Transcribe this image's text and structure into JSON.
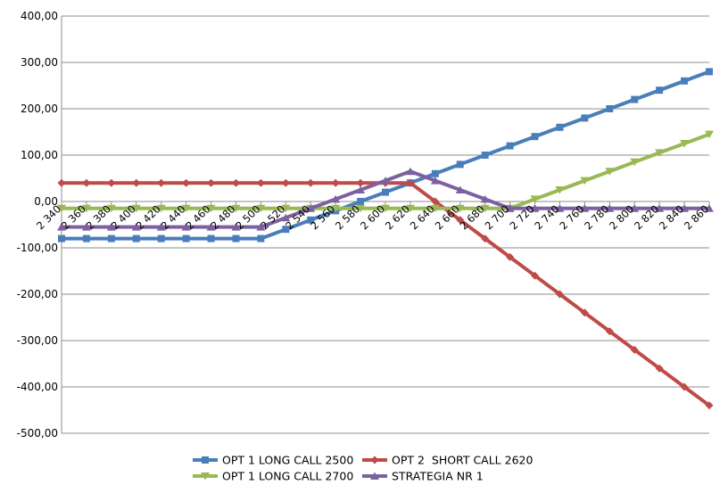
{
  "chart_data": {
    "type": "line",
    "title": "",
    "xlabel": "",
    "ylabel": "",
    "ylim": [
      -500,
      400
    ],
    "y_ticks": [
      "400,00",
      "300,00",
      "200,00",
      "100,00",
      "0,00",
      "-100,00",
      "-200,00",
      "-300,00",
      "-400,00",
      "-500,00"
    ],
    "y_tick_values": [
      400,
      300,
      200,
      100,
      0,
      -100,
      -200,
      -300,
      -400,
      -500
    ],
    "grid": "horizontal",
    "legend_position": "bottom",
    "categories": [
      "2 340",
      "2 360",
      "2 380",
      "2 400",
      "2 420",
      "2 440",
      "2 460",
      "2 480",
      "2 500",
      "2 520",
      "2 540",
      "2 560",
      "2 580",
      "2 600",
      "2 620",
      "2 640",
      "2 660",
      "2 680",
      "2 700",
      "2 720",
      "2 740",
      "2 760",
      "2 780",
      "2 800",
      "2 820",
      "2 840",
      "2 860"
    ],
    "series": [
      {
        "name": "OPT 1 LONG CALL 2500",
        "color": "#4a7ebb",
        "marker": "square",
        "values": [
          -80,
          -80,
          -80,
          -80,
          -80,
          -80,
          -80,
          -80,
          -80,
          -60,
          -40,
          -20,
          0,
          20,
          40,
          60,
          80,
          100,
          120,
          140,
          160,
          180,
          200,
          220,
          240,
          260,
          280
        ]
      },
      {
        "name": "OPT 2  SHORT CALL 2620",
        "color": "#be4b48",
        "marker": "diamond",
        "values": [
          40,
          40,
          40,
          40,
          40,
          40,
          40,
          40,
          40,
          40,
          40,
          40,
          40,
          40,
          40,
          0,
          -40,
          -80,
          -120,
          -160,
          -200,
          -240,
          -280,
          -320,
          -360,
          -400,
          -440
        ]
      },
      {
        "name": "OPT 1 LONG CALL 2700",
        "color": "#98b954",
        "marker": "triangle-down",
        "values": [
          -15,
          -15,
          -15,
          -15,
          -15,
          -15,
          -15,
          -15,
          -15,
          -15,
          -15,
          -15,
          -15,
          -15,
          -15,
          -15,
          -15,
          -15,
          -15,
          5,
          25,
          45,
          65,
          85,
          105,
          125,
          145
        ]
      },
      {
        "name": "STRATEGIA NR 1",
        "color": "#7d60a0",
        "marker": "triangle-up",
        "values": [
          -55,
          -55,
          -55,
          -55,
          -55,
          -55,
          -55,
          -55,
          -55,
          -35,
          -15,
          5,
          25,
          45,
          65,
          45,
          25,
          5,
          -15,
          -15,
          -15,
          -15,
          -15,
          -15,
          -15,
          -15,
          -15
        ]
      }
    ]
  }
}
